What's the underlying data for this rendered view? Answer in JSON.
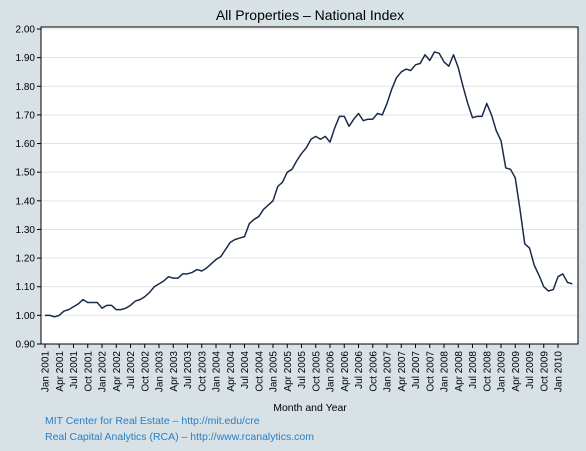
{
  "chart_data": {
    "type": "line",
    "title": "All Properties – National Index",
    "xlabel": "Month and Year",
    "ylabel": "",
    "ylim": [
      0.9,
      2.0
    ],
    "yticks": [
      "0.90",
      "1.00",
      "1.10",
      "1.20",
      "1.30",
      "1.40",
      "1.50",
      "1.60",
      "1.70",
      "1.80",
      "1.90",
      "2.00"
    ],
    "xticks": [
      "Jan 2001",
      "Apr 2001",
      "Jul 2001",
      "Oct 2001",
      "Jan 2002",
      "Apr 2002",
      "Jul 2002",
      "Oct 2002",
      "Jan 2003",
      "Apr 2003",
      "Jul 2003",
      "Oct 2003",
      "Jan 2004",
      "Apr 2004",
      "Jul 2004",
      "Oct 2004",
      "Jan 2005",
      "Apr 2005",
      "Jul 2005",
      "Oct 2005",
      "Jan 2006",
      "Apr 2006",
      "Jul 2006",
      "Oct 2006",
      "Jan 2007",
      "Apr 2007",
      "Jul 2007",
      "Oct 2007",
      "Jan 2008",
      "Apr 2008",
      "Jul 2008",
      "Oct 2008",
      "Jan 2009",
      "Apr 2009",
      "Jul 2009",
      "Oct 2009",
      "Jan 2010"
    ],
    "grid": true,
    "legend": "none",
    "line_color": "#1a2a4a",
    "series": [
      {
        "values": [
          1.0,
          1.0,
          0.995,
          1.0,
          1.015,
          1.02,
          1.03,
          1.04,
          1.055,
          1.045,
          1.045,
          1.045,
          1.025,
          1.035,
          1.035,
          1.02,
          1.02,
          1.025,
          1.035,
          1.05,
          1.055,
          1.065,
          1.08,
          1.1,
          1.11,
          1.12,
          1.135,
          1.13,
          1.13,
          1.145,
          1.145,
          1.15,
          1.16,
          1.155,
          1.165,
          1.18,
          1.195,
          1.205,
          1.23,
          1.255,
          1.265,
          1.27,
          1.275,
          1.32,
          1.335,
          1.345,
          1.37,
          1.385,
          1.4,
          1.45,
          1.465,
          1.5,
          1.51,
          1.54,
          1.565,
          1.585,
          1.615,
          1.625,
          1.615,
          1.625,
          1.605,
          1.655,
          1.695,
          1.695,
          1.66,
          1.685,
          1.705,
          1.68,
          1.685,
          1.685,
          1.705,
          1.7,
          1.74,
          1.79,
          1.83,
          1.85,
          1.86,
          1.855,
          1.875,
          1.88,
          1.91,
          1.89,
          1.92,
          1.915,
          1.885,
          1.87,
          1.91,
          1.865,
          1.8,
          1.74,
          1.69,
          1.695,
          1.695,
          1.74,
          1.7,
          1.645,
          1.61,
          1.515,
          1.51,
          1.48,
          1.37,
          1.25,
          1.235,
          1.175,
          1.14,
          1.1,
          1.085,
          1.09,
          1.135,
          1.145,
          1.115,
          1.11
        ]
      }
    ]
  },
  "credits": [
    "MIT Center for Real Estate – http://mit.edu/cre",
    "Real Capital Analytics (RCA) – http://www.rcanalytics.com"
  ]
}
